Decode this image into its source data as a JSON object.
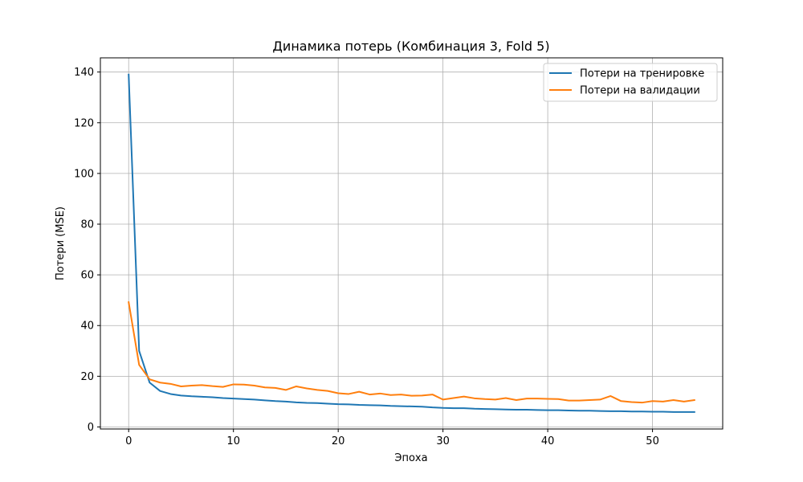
{
  "chart_data": {
    "type": "line",
    "title": "Динамика потерь (Комбинация 3, Fold 5)",
    "xlabel": "Эпоха",
    "ylabel": "Потери (MSE)",
    "xlim": [
      -2.7,
      56.7
    ],
    "ylim": [
      -0.8,
      145.6
    ],
    "xticks": [
      0,
      10,
      20,
      30,
      40,
      50
    ],
    "yticks": [
      0,
      20,
      40,
      60,
      80,
      100,
      120,
      140
    ],
    "grid": true,
    "legend_position": "top-right",
    "x": [
      0,
      1,
      2,
      3,
      4,
      5,
      6,
      7,
      8,
      9,
      10,
      11,
      12,
      13,
      14,
      15,
      16,
      17,
      18,
      19,
      20,
      21,
      22,
      23,
      24,
      25,
      26,
      27,
      28,
      29,
      30,
      31,
      32,
      33,
      34,
      35,
      36,
      37,
      38,
      39,
      40,
      41,
      42,
      43,
      44,
      45,
      46,
      47,
      48,
      49,
      50,
      51,
      52,
      53,
      54
    ],
    "series": [
      {
        "name": "Потери на тренировке",
        "color": "#1f77b4",
        "values": [
          139.0,
          30.0,
          17.5,
          14.2,
          13.0,
          12.4,
          12.1,
          11.9,
          11.7,
          11.4,
          11.2,
          11.0,
          10.8,
          10.5,
          10.2,
          10.0,
          9.7,
          9.5,
          9.4,
          9.2,
          9.0,
          8.9,
          8.7,
          8.6,
          8.5,
          8.3,
          8.2,
          8.1,
          8.0,
          7.7,
          7.5,
          7.4,
          7.4,
          7.2,
          7.1,
          7.0,
          6.9,
          6.8,
          6.8,
          6.7,
          6.6,
          6.6,
          6.5,
          6.4,
          6.4,
          6.3,
          6.2,
          6.2,
          6.1,
          6.1,
          6.0,
          6.0,
          5.9,
          5.9,
          5.9
        ]
      },
      {
        "name": "Потери на валидации",
        "color": "#ff7f0e",
        "values": [
          49.2,
          24.5,
          18.8,
          17.5,
          17.0,
          16.0,
          16.3,
          16.5,
          16.1,
          15.8,
          16.8,
          16.7,
          16.3,
          15.6,
          15.4,
          14.6,
          16.0,
          15.2,
          14.6,
          14.2,
          13.3,
          13.0,
          13.9,
          12.8,
          13.2,
          12.6,
          12.8,
          12.3,
          12.4,
          12.8,
          10.8,
          11.4,
          12.0,
          11.3,
          11.0,
          10.8,
          11.4,
          10.6,
          11.2,
          11.2,
          11.1,
          11.0,
          10.4,
          10.4,
          10.6,
          10.8,
          12.2,
          10.2,
          9.8,
          9.6,
          10.2,
          10.0,
          10.6,
          10.0,
          10.6
        ]
      }
    ]
  }
}
